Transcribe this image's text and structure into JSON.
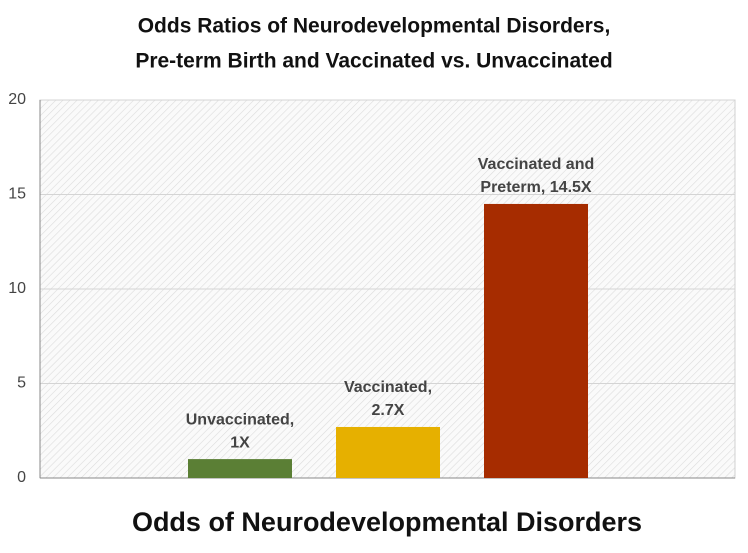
{
  "chart_data": {
    "type": "bar",
    "title": [
      "Odds Ratios of Neurodevelopmental Disorders,",
      "Pre-term Birth and Vaccinated vs. Unvaccinated"
    ],
    "x_label": "Odds of Neurodevelopmental Disorders",
    "categories": [
      null,
      null,
      null,
      null
    ],
    "values": [
      null,
      1,
      2.7,
      14.5
    ],
    "value_labels": [
      null,
      [
        "Unvaccinated,",
        "1X"
      ],
      [
        "Vaccinated,",
        "2.7X"
      ],
      [
        "Vaccinated and",
        "Preterm, 14.5X"
      ]
    ],
    "colors": [
      null,
      "#5b7f35",
      "#e6b000",
      "#a62c00"
    ],
    "ylim": [
      0,
      20
    ],
    "yticks": [
      0,
      5,
      10,
      15,
      20
    ],
    "grid": true
  }
}
